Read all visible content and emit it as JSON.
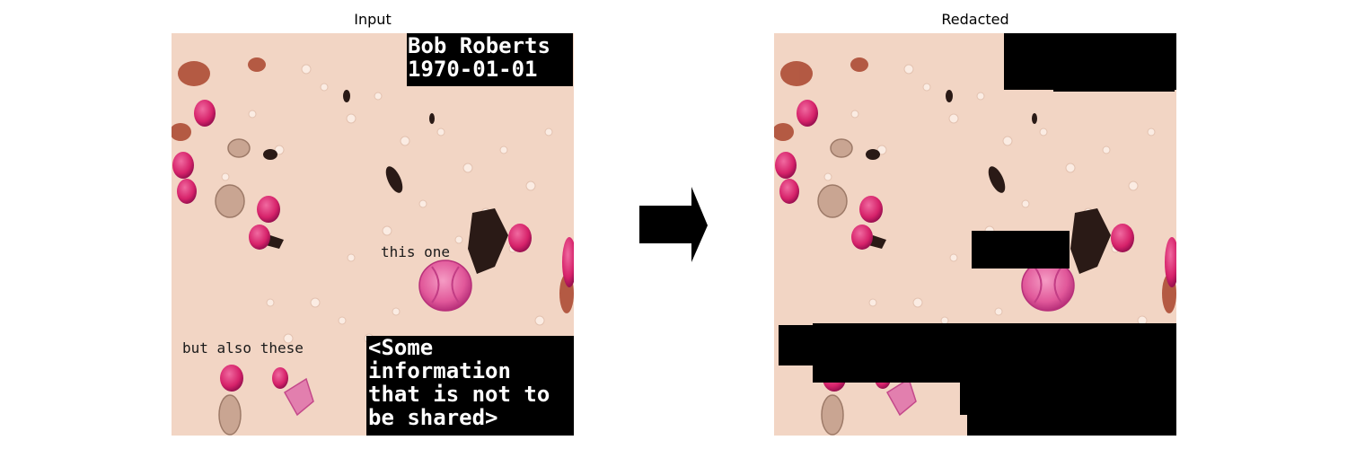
{
  "panels": {
    "input": {
      "title": "Input"
    },
    "redacted": {
      "title": "Redacted"
    }
  },
  "annotations": {
    "this_one": "this one",
    "but_also_these": "but also these"
  },
  "sensitive": {
    "name_line": "Bob Roberts",
    "date_line": "1970-01-01",
    "info_lines": [
      "<Some",
      "information",
      "that is not to",
      "be shared>"
    ]
  },
  "colors": {
    "background_tint": "#f2d5c4",
    "cell_magenta": "#d6226a",
    "dark_debris": "#2a1a16",
    "redaction": "#000000"
  },
  "icons": {
    "arrow": "right-arrow-icon"
  }
}
